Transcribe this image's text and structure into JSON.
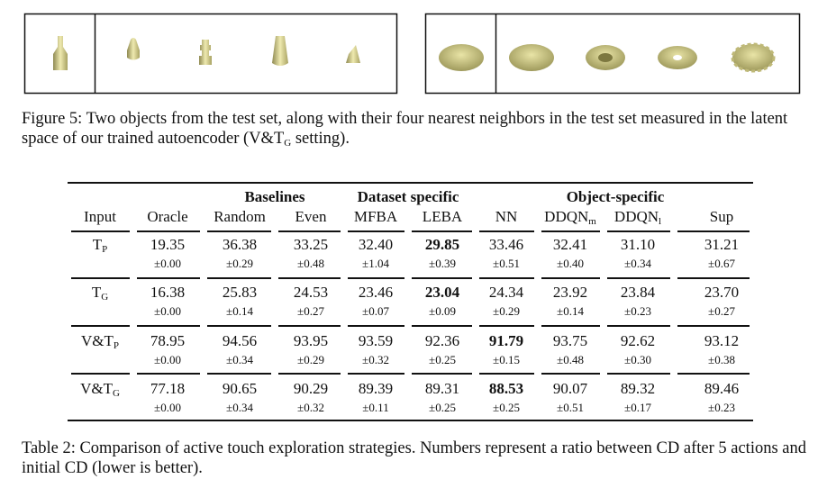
{
  "figure": {
    "caption": [
      "Figure 5: Two objects from the test set, along with their four nearest neighbors in the test set measured in the latent space of our trained autoencoder (V&T",
      "G",
      " setting)."
    ]
  },
  "table": {
    "groups": [
      "Baselines",
      "Dataset specific",
      "Object-specific"
    ],
    "columns": [
      "Input",
      "Oracle",
      "Random",
      "Even",
      "MFBA",
      "LEBA",
      "NN",
      {
        "base": "DDQN",
        "sub": "m"
      },
      {
        "base": "DDQN",
        "sub": "l"
      },
      "Sup"
    ],
    "rows": [
      {
        "input": {
          "base": "T",
          "sub": "P"
        },
        "best": 4,
        "means": [
          "19.35",
          "36.38",
          "33.25",
          "32.40",
          "29.85",
          "33.46",
          "32.41",
          "31.10",
          "31.21"
        ],
        "stds": [
          "±0.00",
          "±0.29",
          "±0.48",
          "±1.04",
          "±0.39",
          "±0.51",
          "±0.40",
          "±0.34",
          "±0.67"
        ]
      },
      {
        "input": {
          "base": "T",
          "sub": "G"
        },
        "best": 4,
        "means": [
          "16.38",
          "25.83",
          "24.53",
          "23.46",
          "23.04",
          "24.34",
          "23.92",
          "23.84",
          "23.70"
        ],
        "stds": [
          "±0.00",
          "±0.14",
          "±0.27",
          "±0.07",
          "±0.09",
          "±0.29",
          "±0.14",
          "±0.23",
          "±0.27"
        ]
      },
      {
        "input": {
          "base": "V&T",
          "sub": "P"
        },
        "best": 5,
        "means": [
          "78.95",
          "94.56",
          "93.95",
          "93.59",
          "92.36",
          "91.79",
          "93.75",
          "92.62",
          "93.12"
        ],
        "stds": [
          "±0.00",
          "±0.34",
          "±0.29",
          "±0.32",
          "±0.25",
          "±0.15",
          "±0.48",
          "±0.30",
          "±0.38"
        ]
      },
      {
        "input": {
          "base": "V&T",
          "sub": "G"
        },
        "best": 5,
        "means": [
          "77.18",
          "90.65",
          "90.29",
          "89.39",
          "89.31",
          "88.53",
          "90.07",
          "89.32",
          "89.46"
        ],
        "stds": [
          "±0.00",
          "±0.34",
          "±0.32",
          "±0.11",
          "±0.25",
          "±0.25",
          "±0.51",
          "±0.17",
          "±0.23"
        ]
      }
    ],
    "caption": "Table 2: Comparison of active touch exploration strategies. Numbers represent a ratio between CD after 5 actions and initial CD (lower is better)."
  }
}
